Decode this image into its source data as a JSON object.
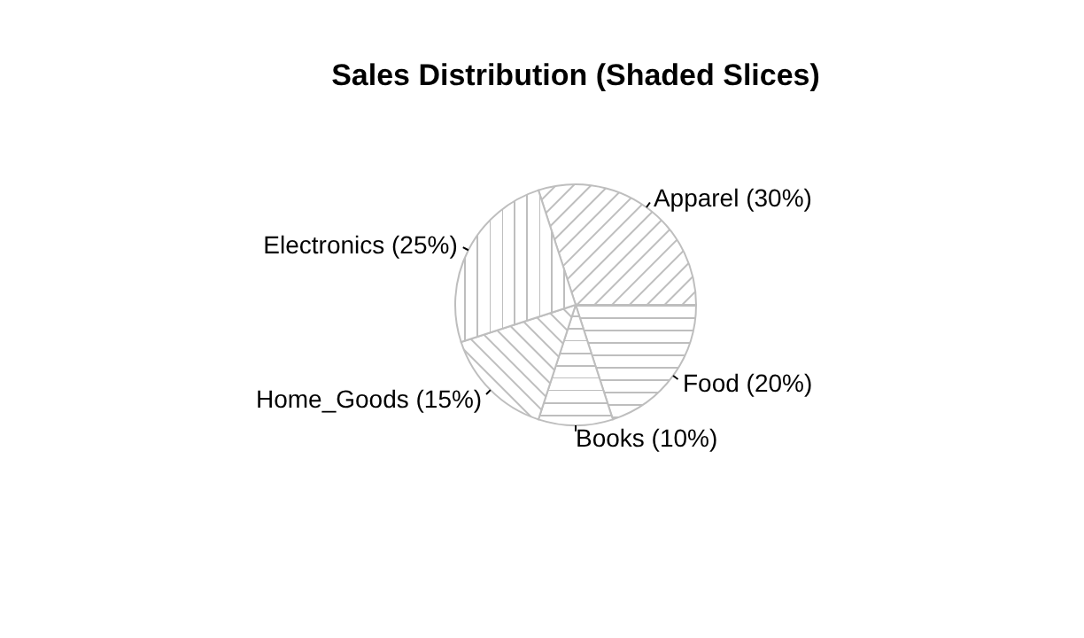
{
  "chart_data": {
    "type": "pie",
    "title": "Sales Distribution (Shaded Slices)",
    "categories": [
      "Apparel (30%)",
      "Food (20%)",
      "Books (10%)",
      "Home_Goods (15%)",
      "Electronics (25%)"
    ],
    "values": [
      30,
      20,
      10,
      15,
      25
    ]
  }
}
